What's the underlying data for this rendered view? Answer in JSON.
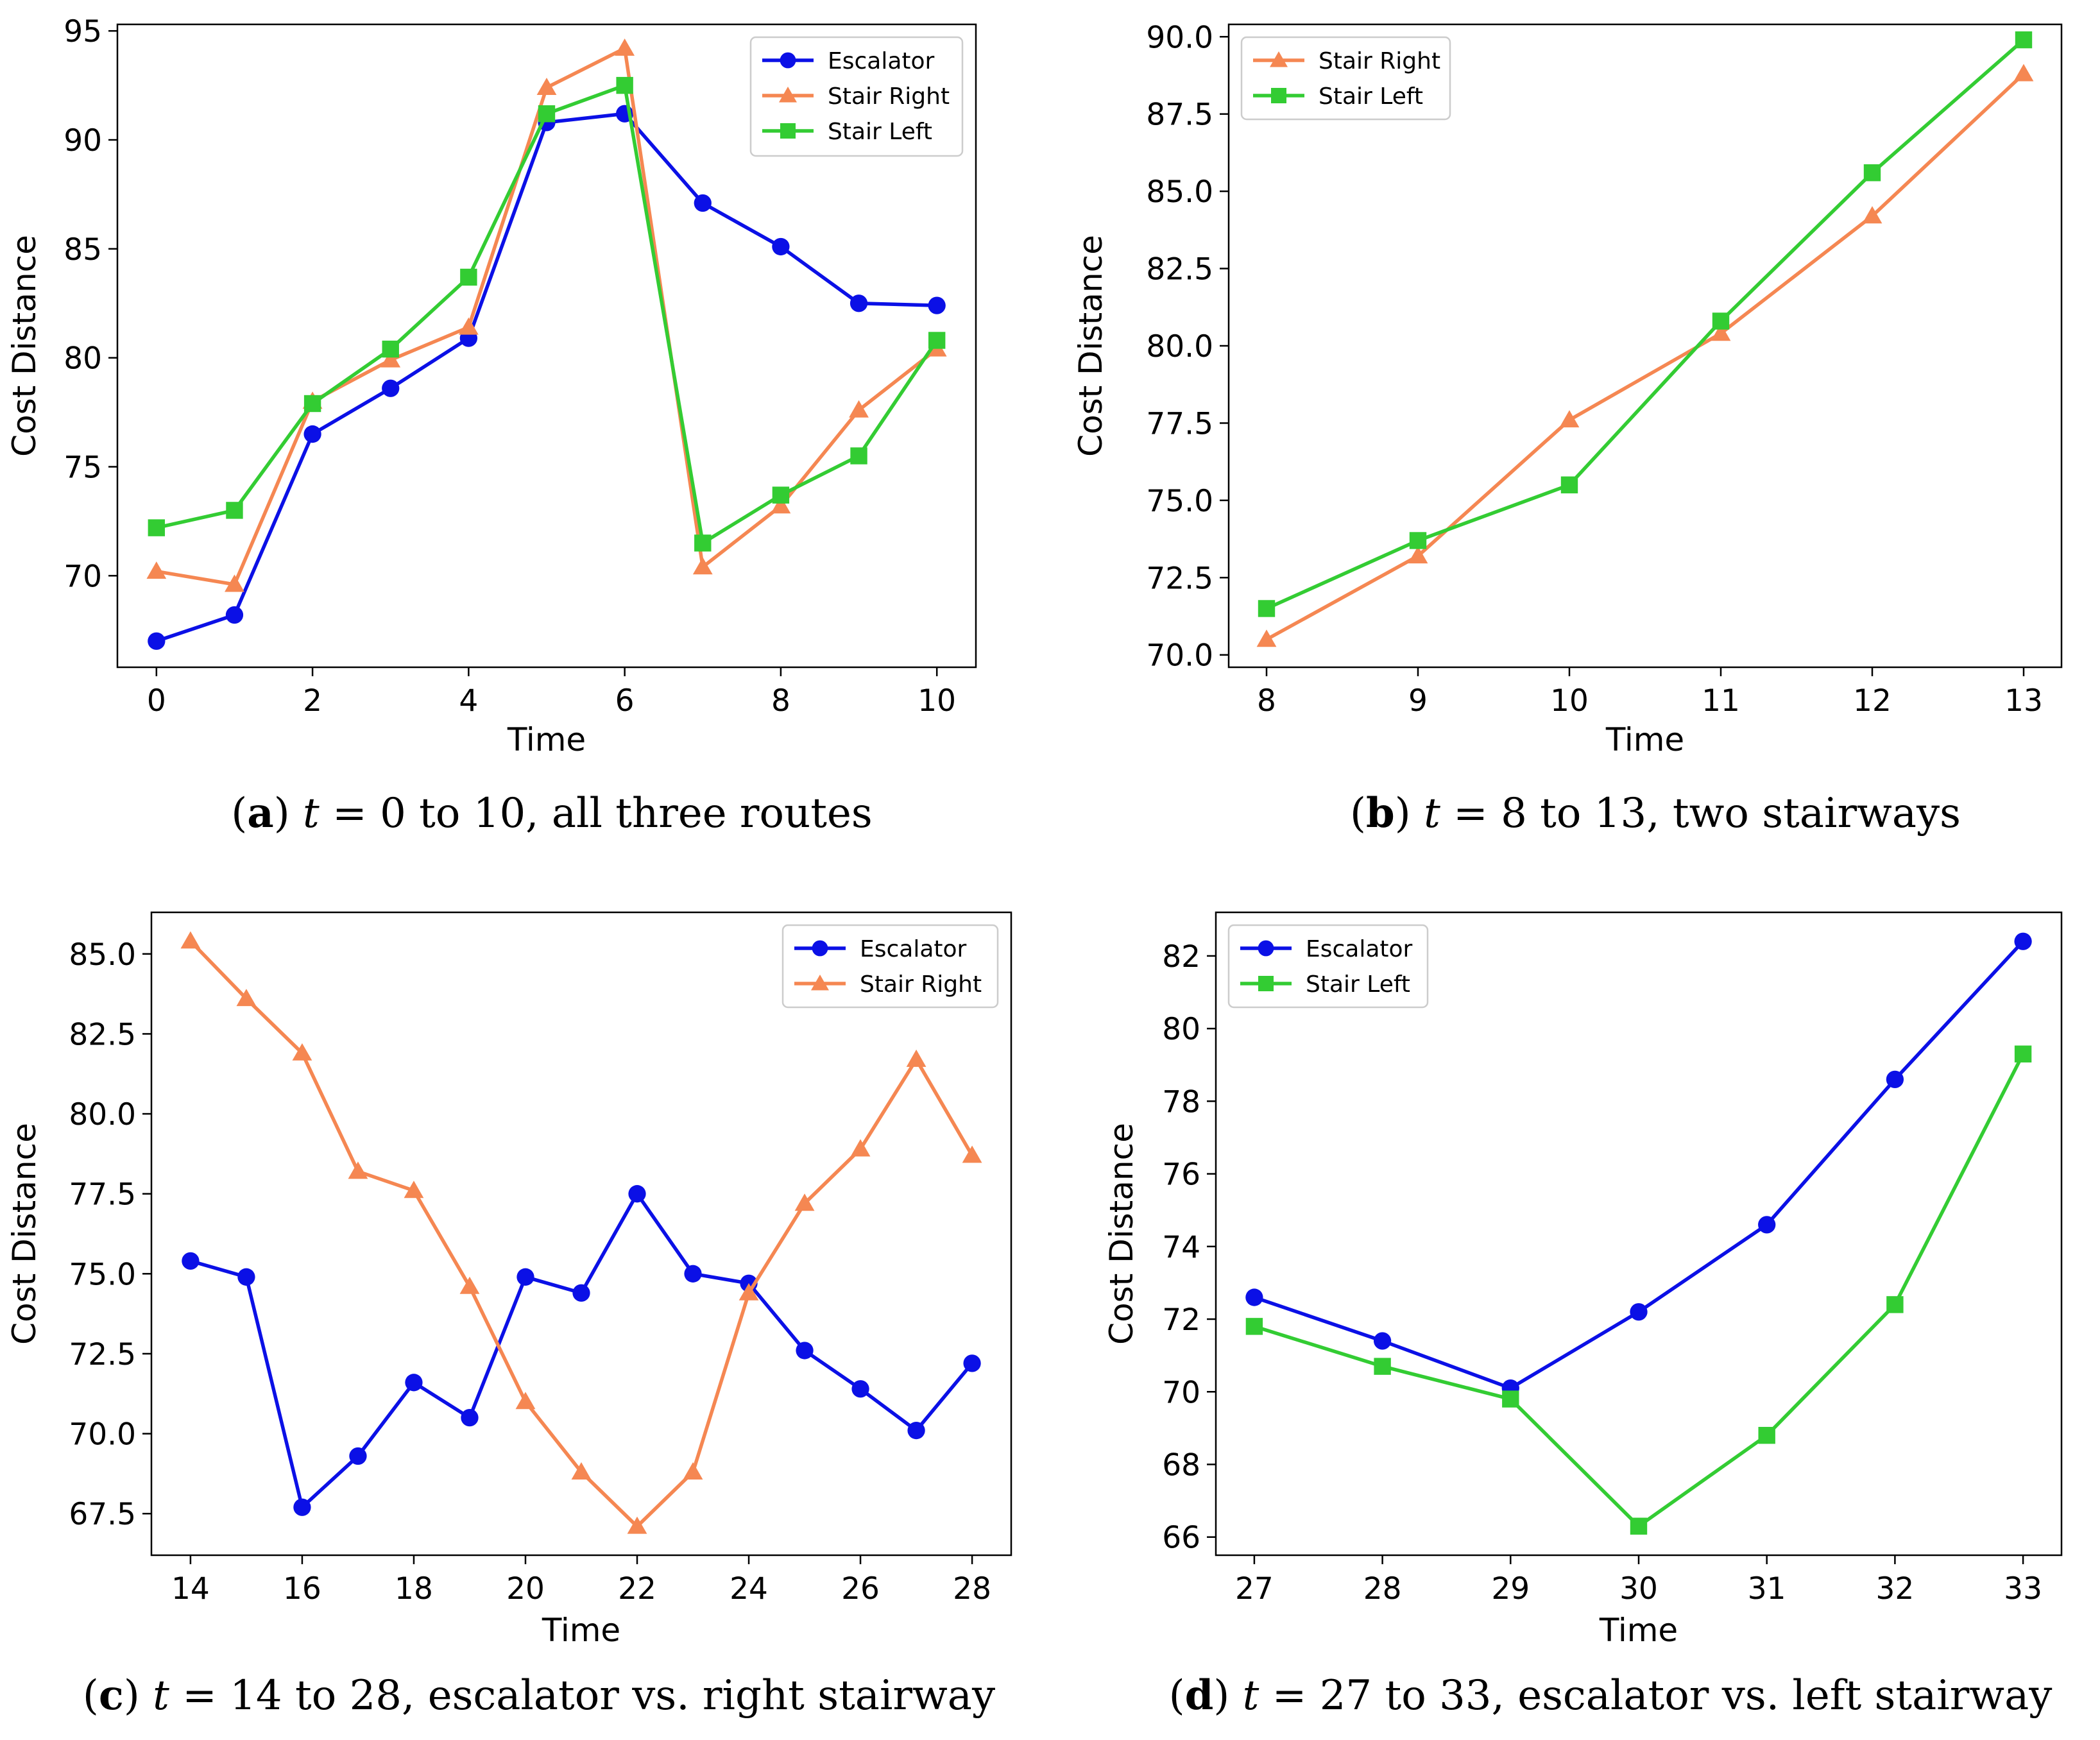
{
  "colors": {
    "escalator": "#0b10e6",
    "stair_right": "#f58752",
    "stair_left": "#33cc33"
  },
  "chart_data": [
    {
      "id": "a",
      "type": "line",
      "x": [
        0,
        1,
        2,
        3,
        4,
        5,
        6,
        7,
        8,
        9,
        10
      ],
      "xlim": [
        -0.5,
        10.5
      ],
      "ylim": [
        65.8,
        95.3
      ],
      "xticks": [
        0,
        2,
        4,
        6,
        8,
        10
      ],
      "yticks": [
        70,
        75,
        80,
        85,
        90,
        95
      ],
      "ytick_labels": [
        "70",
        "75",
        "80",
        "85",
        "90",
        "95"
      ],
      "xlabel": "Time",
      "ylabel": "Cost Distance",
      "legend_position": "top-right",
      "series": [
        {
          "name": "Escalator",
          "marker": "circle",
          "color": "#0b10e6",
          "values": [
            67.0,
            68.2,
            76.5,
            78.6,
            80.9,
            90.8,
            91.2,
            87.1,
            85.1,
            82.5,
            82.4
          ]
        },
        {
          "name": "Stair Right",
          "marker": "triangle",
          "color": "#f58752",
          "values": [
            70.2,
            69.6,
            78.0,
            79.9,
            81.4,
            92.4,
            94.2,
            70.4,
            73.2,
            77.6,
            80.4
          ]
        },
        {
          "name": "Stair Left",
          "marker": "square",
          "color": "#33cc33",
          "values": [
            72.2,
            73.0,
            77.9,
            80.4,
            83.7,
            91.2,
            92.5,
            71.5,
            73.7,
            75.5,
            80.8
          ]
        }
      ],
      "caption": {
        "label": "a",
        "t": "t",
        "text": " = 0 to 10, all three routes"
      }
    },
    {
      "id": "b",
      "type": "line",
      "x": [
        8,
        9,
        10,
        11,
        12,
        13
      ],
      "xlim": [
        7.75,
        13.25
      ],
      "ylim": [
        69.6,
        90.4
      ],
      "xticks": [
        8,
        9,
        10,
        11,
        12,
        13
      ],
      "yticks": [
        70.0,
        72.5,
        75.0,
        77.5,
        80.0,
        82.5,
        85.0,
        87.5,
        90.0
      ],
      "ytick_labels": [
        "70.0",
        "72.5",
        "75.0",
        "77.5",
        "80.0",
        "82.5",
        "85.0",
        "87.5",
        "90.0"
      ],
      "xlabel": "Time",
      "ylabel": "Cost Distance",
      "legend_position": "top-left",
      "series": [
        {
          "name": "Stair Right",
          "marker": "triangle",
          "color": "#f58752",
          "values": [
            70.5,
            73.2,
            77.6,
            80.4,
            84.2,
            88.8
          ]
        },
        {
          "name": "Stair Left",
          "marker": "square",
          "color": "#33cc33",
          "values": [
            71.5,
            73.7,
            75.5,
            80.8,
            85.6,
            89.9
          ]
        }
      ],
      "caption": {
        "label": "b",
        "t": "t",
        "text": " = 8 to 13, two stairways"
      }
    },
    {
      "id": "c",
      "type": "line",
      "x": [
        14,
        15,
        16,
        17,
        18,
        19,
        20,
        21,
        22,
        23,
        24,
        25,
        26,
        27,
        28
      ],
      "xlim": [
        13.3,
        28.7
      ],
      "ylim": [
        66.2,
        86.3
      ],
      "xticks": [
        14,
        16,
        18,
        20,
        22,
        24,
        26,
        28
      ],
      "yticks": [
        67.5,
        70.0,
        72.5,
        75.0,
        77.5,
        80.0,
        82.5,
        85.0
      ],
      "ytick_labels": [
        "67.5",
        "70.0",
        "72.5",
        "75.0",
        "77.5",
        "80.0",
        "82.5",
        "85.0"
      ],
      "xlabel": "Time",
      "ylabel": "Cost Distance",
      "legend_position": "top-right",
      "series": [
        {
          "name": "Escalator",
          "marker": "circle",
          "color": "#0b10e6",
          "values": [
            75.4,
            74.9,
            67.7,
            69.3,
            71.6,
            70.5,
            74.9,
            74.4,
            77.5,
            75.0,
            74.7,
            72.6,
            71.4,
            70.1,
            72.2
          ]
        },
        {
          "name": "Stair Right",
          "marker": "triangle",
          "color": "#f58752",
          "values": [
            85.4,
            83.6,
            81.9,
            78.2,
            77.6,
            74.6,
            71.0,
            68.8,
            67.1,
            68.8,
            74.4,
            77.2,
            78.9,
            81.7,
            78.7
          ]
        }
      ],
      "caption": {
        "label": "c",
        "t": "t",
        "text": " = 14 to 28, escalator vs. right stairway"
      }
    },
    {
      "id": "d",
      "type": "line",
      "x": [
        27,
        28,
        29,
        30,
        31,
        32,
        33
      ],
      "xlim": [
        26.7,
        33.3
      ],
      "ylim": [
        65.5,
        83.2
      ],
      "xticks": [
        27,
        28,
        29,
        30,
        31,
        32,
        33
      ],
      "yticks": [
        66,
        68,
        70,
        72,
        74,
        76,
        78,
        80,
        82
      ],
      "ytick_labels": [
        "66",
        "68",
        "70",
        "72",
        "74",
        "76",
        "78",
        "80",
        "82"
      ],
      "xlabel": "Time",
      "ylabel": "Cost Distance",
      "legend_position": "top-left",
      "series": [
        {
          "name": "Escalator",
          "marker": "circle",
          "color": "#0b10e6",
          "values": [
            72.6,
            71.4,
            70.1,
            72.2,
            74.6,
            78.6,
            82.4
          ]
        },
        {
          "name": "Stair Left",
          "marker": "square",
          "color": "#33cc33",
          "values": [
            71.8,
            70.7,
            69.8,
            66.3,
            68.8,
            72.4,
            79.3
          ]
        }
      ],
      "caption": {
        "label": "d",
        "t": "t",
        "text": " = 27 to 33, escalator vs. left stairway"
      }
    }
  ]
}
